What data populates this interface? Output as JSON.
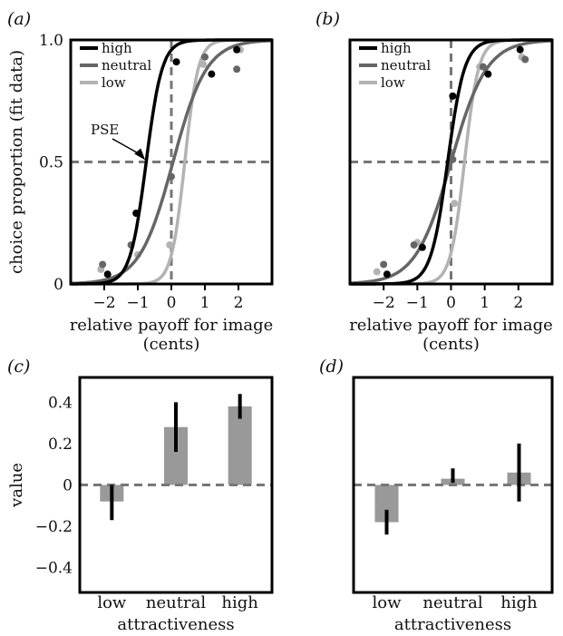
{
  "chart_data": [
    {
      "panel": "(a)",
      "type": "line",
      "xlabel": "relative payoff for image",
      "xlabel2": "(cents)",
      "ylabel": "choice proportion (fit data)",
      "xlim": [
        -3,
        3
      ],
      "ylim": [
        0,
        1
      ],
      "xticks": [
        -2,
        -1,
        0,
        1,
        2
      ],
      "xtick_labels": [
        "−2",
        "−1",
        "0",
        "1",
        "2"
      ],
      "yticks": [
        0,
        0.5,
        1
      ],
      "ytick_labels": [
        "0",
        "0.5",
        "1.0"
      ],
      "reference_lines": {
        "x": 0,
        "y": 0.5
      },
      "annotation": {
        "text": "PSE",
        "x": -0.75,
        "y": 0.5
      },
      "legend": "top-left",
      "colors": {
        "high": "#000000",
        "neutral": "#666666",
        "low": "#b3b3b3"
      },
      "series": [
        {
          "name": "high",
          "pse": -0.75,
          "slope": 4.2,
          "points": [
            [
              -1.9,
              0.04
            ],
            [
              -1.05,
              0.29
            ],
            [
              0.15,
              0.91
            ],
            [
              1.2,
              0.86
            ],
            [
              1.95,
              0.96
            ]
          ]
        },
        {
          "name": "neutral",
          "pse": 0.05,
          "slope": 2.0,
          "points": [
            [
              -2.05,
              0.08
            ],
            [
              -1.2,
              0.16
            ],
            [
              0.0,
              0.44
            ],
            [
              1.0,
              0.93
            ],
            [
              1.95,
              0.88
            ]
          ]
        },
        {
          "name": "low",
          "pse": 0.4,
          "slope": 5.0,
          "points": [
            [
              -2.1,
              0.06
            ],
            [
              -1.0,
              0.12
            ],
            [
              -0.05,
              0.16
            ],
            [
              0.95,
              0.9
            ],
            [
              2.05,
              0.96
            ]
          ]
        }
      ]
    },
    {
      "panel": "(b)",
      "type": "line",
      "xlabel": "relative payoff for image",
      "xlabel2": "(cents)",
      "xlim": [
        -3,
        3
      ],
      "ylim": [
        0,
        1
      ],
      "xticks": [
        -2,
        -1,
        0,
        1,
        2
      ],
      "xtick_labels": [
        "−2",
        "−1",
        "0",
        "1",
        "2"
      ],
      "reference_lines": {
        "x": 0,
        "y": 0.5
      },
      "legend": "top-left",
      "colors": {
        "high": "#000000",
        "neutral": "#666666",
        "low": "#b3b3b3"
      },
      "series": [
        {
          "name": "high",
          "pse": -0.1,
          "slope": 4.0,
          "points": [
            [
              -1.9,
              0.04
            ],
            [
              -0.85,
              0.15
            ],
            [
              0.05,
              0.77
            ],
            [
              1.1,
              0.86
            ],
            [
              2.05,
              0.96
            ]
          ]
        },
        {
          "name": "neutral",
          "pse": 0.0,
          "slope": 1.9,
          "points": [
            [
              -2.0,
              0.08
            ],
            [
              -1.1,
              0.16
            ],
            [
              0.05,
              0.51
            ],
            [
              0.95,
              0.89
            ],
            [
              2.2,
              0.92
            ]
          ]
        },
        {
          "name": "low",
          "pse": 0.4,
          "slope": 4.8,
          "points": [
            [
              -2.2,
              0.05
            ],
            [
              -1.0,
              0.17
            ],
            [
              0.1,
              0.33
            ],
            [
              0.85,
              0.89
            ],
            [
              2.1,
              0.93
            ]
          ]
        }
      ]
    },
    {
      "panel": "(c)",
      "type": "bar",
      "xlabel": "attractiveness",
      "ylabel": "value",
      "categories": [
        "low",
        "neutral",
        "high"
      ],
      "values": [
        -0.08,
        0.28,
        0.38
      ],
      "errors": [
        [
          -0.17,
          0.0
        ],
        [
          0.16,
          0.4
        ],
        [
          0.32,
          0.44
        ]
      ],
      "ylim": [
        -0.52,
        0.52
      ],
      "yticks": [
        -0.4,
        -0.2,
        0,
        0.2,
        0.4
      ],
      "ytick_labels": [
        "−0.4",
        "−0.2",
        "0",
        "0.2",
        "0.4"
      ],
      "reference_lines": {
        "y": 0
      },
      "bar_color": "#999999"
    },
    {
      "panel": "(d)",
      "type": "bar",
      "xlabel": "attractiveness",
      "categories": [
        "low",
        "neutral",
        "high"
      ],
      "values": [
        -0.18,
        0.03,
        0.06
      ],
      "errors": [
        [
          -0.24,
          -0.12
        ],
        [
          0.01,
          0.08
        ],
        [
          -0.08,
          0.2
        ]
      ],
      "ylim": [
        -0.52,
        0.52
      ],
      "reference_lines": {
        "y": 0
      },
      "bar_color": "#999999"
    }
  ]
}
